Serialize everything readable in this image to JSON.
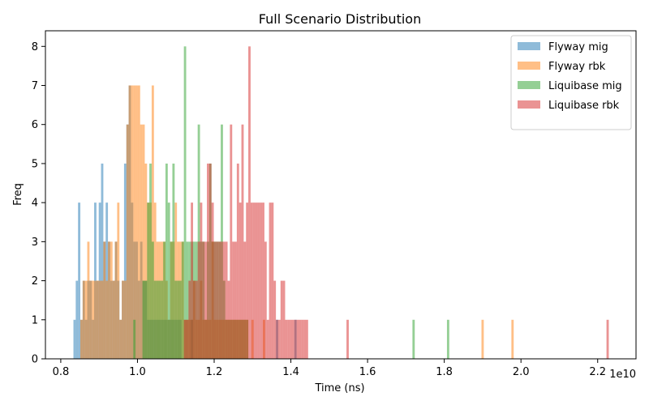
{
  "chart_data": {
    "type": "histogram",
    "title": "Full Scenario Distribution",
    "xlabel": "Time (ns)",
    "ylabel": "Freq",
    "x_scale_label": "1e10",
    "xlim": [
      0.76,
      2.3
    ],
    "ylim": [
      0,
      8.4
    ],
    "x_ticks": [
      0.8,
      1.0,
      1.2,
      1.4,
      1.6,
      1.8,
      2.0,
      2.2
    ],
    "x_tick_labels": [
      "0.8",
      "1.0",
      "1.2",
      "1.4",
      "1.6",
      "1.8",
      "2.0",
      "2.2"
    ],
    "y_ticks": [
      0,
      1,
      2,
      3,
      4,
      5,
      6,
      7,
      8
    ],
    "y_tick_labels": [
      "0",
      "1",
      "2",
      "3",
      "4",
      "5",
      "6",
      "7",
      "8"
    ],
    "bin_width": 0.006,
    "alpha": 0.5,
    "legend_position": "top-right",
    "grid": false,
    "series": [
      {
        "name": "Flyway mig",
        "color": "#1f77b4",
        "bins": [
          [
            0.836,
            1
          ],
          [
            0.842,
            2
          ],
          [
            0.848,
            4
          ],
          [
            0.854,
            1
          ],
          [
            0.86,
            2
          ],
          [
            0.866,
            1
          ],
          [
            0.872,
            2
          ],
          [
            0.878,
            2
          ],
          [
            0.884,
            1
          ],
          [
            0.89,
            4
          ],
          [
            0.896,
            2
          ],
          [
            0.902,
            4
          ],
          [
            0.908,
            5
          ],
          [
            0.914,
            3
          ],
          [
            0.92,
            4
          ],
          [
            0.926,
            3
          ],
          [
            0.932,
            2
          ],
          [
            0.938,
            2
          ],
          [
            0.944,
            3
          ],
          [
            0.95,
            2
          ],
          [
            0.956,
            1
          ],
          [
            0.962,
            2
          ],
          [
            0.968,
            5
          ],
          [
            0.974,
            6
          ],
          [
            0.98,
            7
          ],
          [
            0.986,
            4
          ],
          [
            0.992,
            3
          ],
          [
            0.998,
            3
          ],
          [
            1.004,
            2
          ],
          [
            1.01,
            3
          ],
          [
            1.016,
            2
          ],
          [
            1.022,
            2
          ],
          [
            1.028,
            1
          ],
          [
            1.034,
            1
          ],
          [
            1.04,
            1
          ],
          [
            1.046,
            1
          ],
          [
            1.052,
            1
          ],
          [
            1.058,
            1
          ],
          [
            1.064,
            1
          ],
          [
            1.07,
            1
          ],
          [
            1.076,
            1
          ],
          [
            1.082,
            1
          ],
          [
            1.088,
            1
          ],
          [
            1.094,
            1
          ],
          [
            1.1,
            1
          ],
          [
            1.106,
            1
          ],
          [
            1.112,
            1
          ],
          [
            1.142,
            1
          ],
          [
            1.364,
            1
          ],
          [
            1.412,
            1
          ]
        ]
      },
      {
        "name": "Flyway rbk",
        "color": "#ff7f0e",
        "bins": [
          [
            0.854,
            1
          ],
          [
            0.86,
            2
          ],
          [
            0.866,
            2
          ],
          [
            0.872,
            3
          ],
          [
            0.878,
            2
          ],
          [
            0.884,
            2
          ],
          [
            0.89,
            2
          ],
          [
            0.896,
            2
          ],
          [
            0.902,
            2
          ],
          [
            0.908,
            2
          ],
          [
            0.914,
            3
          ],
          [
            0.92,
            2
          ],
          [
            0.926,
            3
          ],
          [
            0.932,
            3
          ],
          [
            0.938,
            2
          ],
          [
            0.944,
            3
          ],
          [
            0.95,
            4
          ],
          [
            0.956,
            1
          ],
          [
            0.962,
            2
          ],
          [
            0.968,
            2
          ],
          [
            0.974,
            6
          ],
          [
            0.98,
            7
          ],
          [
            0.986,
            7
          ],
          [
            0.992,
            7
          ],
          [
            0.998,
            7
          ],
          [
            1.004,
            7
          ],
          [
            1.01,
            6
          ],
          [
            1.016,
            6
          ],
          [
            1.022,
            5
          ],
          [
            1.028,
            4
          ],
          [
            1.034,
            4
          ],
          [
            1.04,
            7
          ],
          [
            1.046,
            4
          ],
          [
            1.052,
            3
          ],
          [
            1.058,
            3
          ],
          [
            1.064,
            3
          ],
          [
            1.07,
            3
          ],
          [
            1.076,
            2
          ],
          [
            1.082,
            1
          ],
          [
            1.088,
            3
          ],
          [
            1.094,
            3
          ],
          [
            1.1,
            4
          ],
          [
            1.106,
            3
          ],
          [
            1.112,
            3
          ],
          [
            1.118,
            3
          ],
          [
            1.124,
            1
          ],
          [
            1.13,
            1
          ],
          [
            1.136,
            1
          ],
          [
            1.142,
            1
          ],
          [
            1.148,
            2
          ],
          [
            1.154,
            1
          ],
          [
            1.16,
            1
          ],
          [
            1.166,
            2
          ],
          [
            1.172,
            1
          ],
          [
            1.178,
            1
          ],
          [
            1.184,
            1
          ],
          [
            1.19,
            1
          ],
          [
            1.196,
            3
          ],
          [
            1.202,
            1
          ],
          [
            1.208,
            1
          ],
          [
            1.214,
            1
          ],
          [
            1.22,
            1
          ],
          [
            1.226,
            1
          ],
          [
            1.232,
            1
          ],
          [
            1.238,
            1
          ],
          [
            1.244,
            1
          ],
          [
            1.25,
            1
          ],
          [
            1.256,
            1
          ],
          [
            1.262,
            1
          ],
          [
            1.268,
            1
          ],
          [
            1.274,
            1
          ],
          [
            1.28,
            1
          ],
          [
            1.286,
            1
          ],
          [
            1.3,
            1
          ],
          [
            1.33,
            1
          ],
          [
            1.9,
            1
          ],
          [
            1.978,
            1
          ]
        ]
      },
      {
        "name": "Liquibase mig",
        "color": "#2ca02c",
        "bins": [
          [
            0.992,
            1
          ],
          [
            1.016,
            2
          ],
          [
            1.022,
            2
          ],
          [
            1.028,
            4
          ],
          [
            1.034,
            5
          ],
          [
            1.04,
            3
          ],
          [
            1.046,
            2
          ],
          [
            1.052,
            2
          ],
          [
            1.058,
            2
          ],
          [
            1.064,
            2
          ],
          [
            1.07,
            3
          ],
          [
            1.076,
            5
          ],
          [
            1.082,
            4
          ],
          [
            1.088,
            3
          ],
          [
            1.094,
            5
          ],
          [
            1.1,
            2
          ],
          [
            1.106,
            2
          ],
          [
            1.112,
            2
          ],
          [
            1.118,
            3
          ],
          [
            1.124,
            8
          ],
          [
            1.13,
            3
          ],
          [
            1.136,
            3
          ],
          [
            1.142,
            3
          ],
          [
            1.148,
            3
          ],
          [
            1.154,
            3
          ],
          [
            1.16,
            6
          ],
          [
            1.166,
            3
          ],
          [
            1.172,
            3
          ],
          [
            1.178,
            1
          ],
          [
            1.184,
            3
          ],
          [
            1.19,
            5
          ],
          [
            1.196,
            3
          ],
          [
            1.202,
            3
          ],
          [
            1.208,
            3
          ],
          [
            1.214,
            3
          ],
          [
            1.22,
            6
          ],
          [
            1.226,
            2
          ],
          [
            1.232,
            1
          ],
          [
            1.238,
            1
          ],
          [
            1.244,
            1
          ],
          [
            1.25,
            1
          ],
          [
            1.256,
            1
          ],
          [
            1.262,
            1
          ],
          [
            1.268,
            1
          ],
          [
            1.274,
            1
          ],
          [
            1.28,
            1
          ],
          [
            1.286,
            1
          ],
          [
            1.72,
            1
          ],
          [
            1.81,
            1
          ]
        ]
      },
      {
        "name": "Liquibase rbk",
        "color": "#d62728",
        "bins": [
          [
            1.124,
            1
          ],
          [
            1.13,
            1
          ],
          [
            1.136,
            2
          ],
          [
            1.142,
            4
          ],
          [
            1.148,
            2
          ],
          [
            1.154,
            2
          ],
          [
            1.16,
            3
          ],
          [
            1.166,
            4
          ],
          [
            1.172,
            3
          ],
          [
            1.178,
            3
          ],
          [
            1.184,
            5
          ],
          [
            1.19,
            5
          ],
          [
            1.196,
            4
          ],
          [
            1.202,
            3
          ],
          [
            1.208,
            3
          ],
          [
            1.214,
            3
          ],
          [
            1.22,
            3
          ],
          [
            1.226,
            3
          ],
          [
            1.232,
            3
          ],
          [
            1.238,
            2
          ],
          [
            1.244,
            6
          ],
          [
            1.25,
            3
          ],
          [
            1.256,
            3
          ],
          [
            1.262,
            5
          ],
          [
            1.268,
            4
          ],
          [
            1.274,
            6
          ],
          [
            1.28,
            3
          ],
          [
            1.286,
            4
          ],
          [
            1.292,
            8
          ],
          [
            1.298,
            4
          ],
          [
            1.304,
            4
          ],
          [
            1.31,
            4
          ],
          [
            1.316,
            4
          ],
          [
            1.322,
            4
          ],
          [
            1.328,
            4
          ],
          [
            1.334,
            3
          ],
          [
            1.34,
            1
          ],
          [
            1.346,
            4
          ],
          [
            1.352,
            4
          ],
          [
            1.358,
            2
          ],
          [
            1.364,
            1
          ],
          [
            1.37,
            1
          ],
          [
            1.376,
            2
          ],
          [
            1.382,
            2
          ],
          [
            1.388,
            1
          ],
          [
            1.394,
            1
          ],
          [
            1.4,
            1
          ],
          [
            1.406,
            1
          ],
          [
            1.412,
            1
          ],
          [
            1.418,
            1
          ],
          [
            1.424,
            1
          ],
          [
            1.43,
            1
          ],
          [
            1.436,
            1
          ],
          [
            1.442,
            1
          ],
          [
            1.548,
            1
          ],
          [
            2.226,
            1
          ]
        ]
      }
    ]
  }
}
